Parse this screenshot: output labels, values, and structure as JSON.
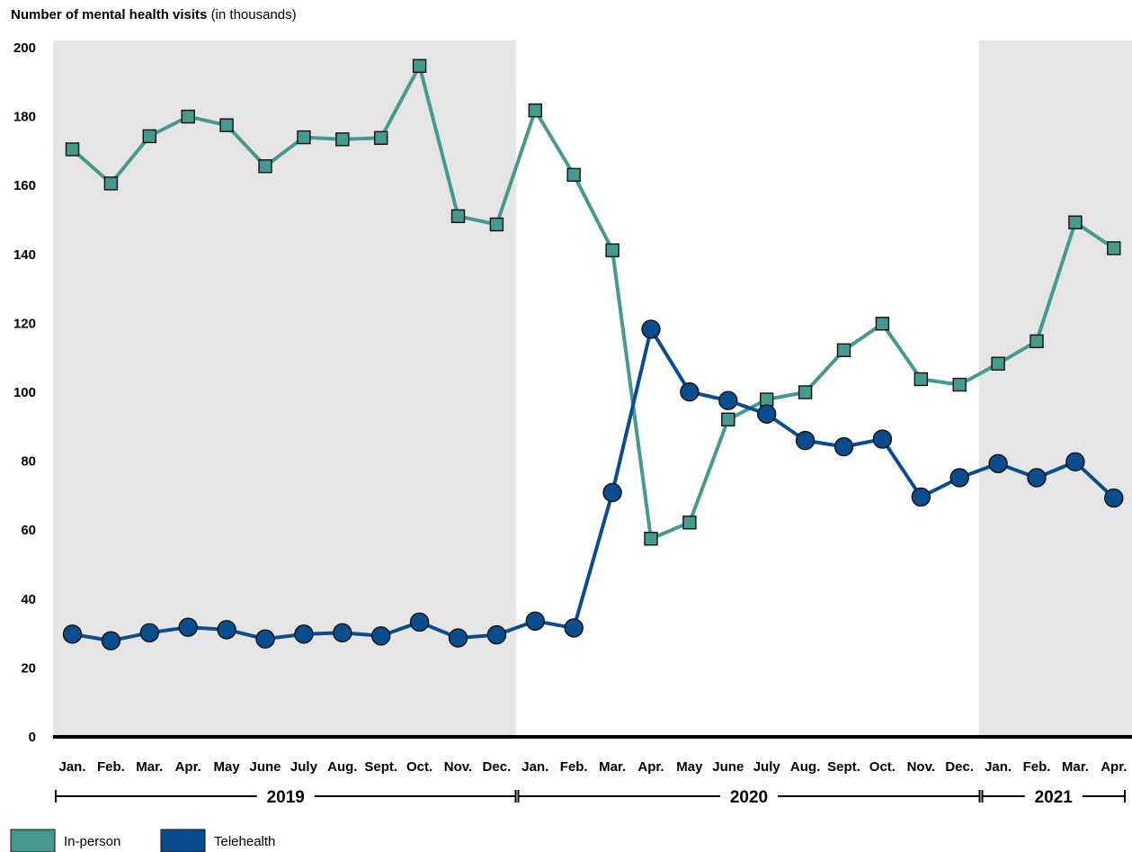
{
  "chart_data": {
    "type": "line",
    "title": "Number of mental health visits",
    "title_suffix": "(in thousands)",
    "ylim": [
      0,
      200
    ],
    "yticks": [
      "0",
      "20",
      "40",
      "60",
      "80",
      "100",
      "120",
      "140",
      "160",
      "180",
      "200"
    ],
    "categories": [
      "Jan.",
      "Feb.",
      "Mar.",
      "Apr.",
      "May",
      "June",
      "July",
      "Aug.",
      "Sept.",
      "Oct.",
      "Nov.",
      "Dec.",
      "Jan.",
      "Feb.",
      "Mar.",
      "Apr.",
      "May",
      "June",
      "July",
      "Aug.",
      "Sept.",
      "Oct.",
      "Nov.",
      "Dec.",
      "Jan.",
      "Feb.",
      "Mar.",
      "Apr."
    ],
    "years": [
      {
        "label": "2019",
        "start": 0,
        "end": 11
      },
      {
        "label": "2020",
        "start": 12,
        "end": 23
      },
      {
        "label": "2021",
        "start": 24,
        "end": 27
      }
    ],
    "shaded_years": [
      "2019",
      "2021"
    ],
    "grid": false,
    "legend_position": "bottom-left",
    "series": [
      {
        "name": "In-person",
        "color": "#45998f",
        "marker": "square",
        "values": [
          170.5,
          160.6,
          174.3,
          180.0,
          177.5,
          165.6,
          174.0,
          173.4,
          173.8,
          194.7,
          151.1,
          148.7,
          181.8,
          163.1,
          141.2,
          57.5,
          62.2,
          92.1,
          97.9,
          100.0,
          112.2,
          119.9,
          103.8,
          102.2,
          108.3,
          114.8,
          149.3,
          141.8
        ]
      },
      {
        "name": "Telehealth",
        "color": "#0a4d8f",
        "marker": "circle",
        "values": [
          29.8,
          27.9,
          30.2,
          31.8,
          31.1,
          28.4,
          29.8,
          30.2,
          29.3,
          33.3,
          28.7,
          29.6,
          33.6,
          31.6,
          70.9,
          118.3,
          100.1,
          97.6,
          93.7,
          86.0,
          84.2,
          86.4,
          69.6,
          75.2,
          79.3,
          75.2,
          79.8,
          69.3
        ]
      }
    ]
  }
}
